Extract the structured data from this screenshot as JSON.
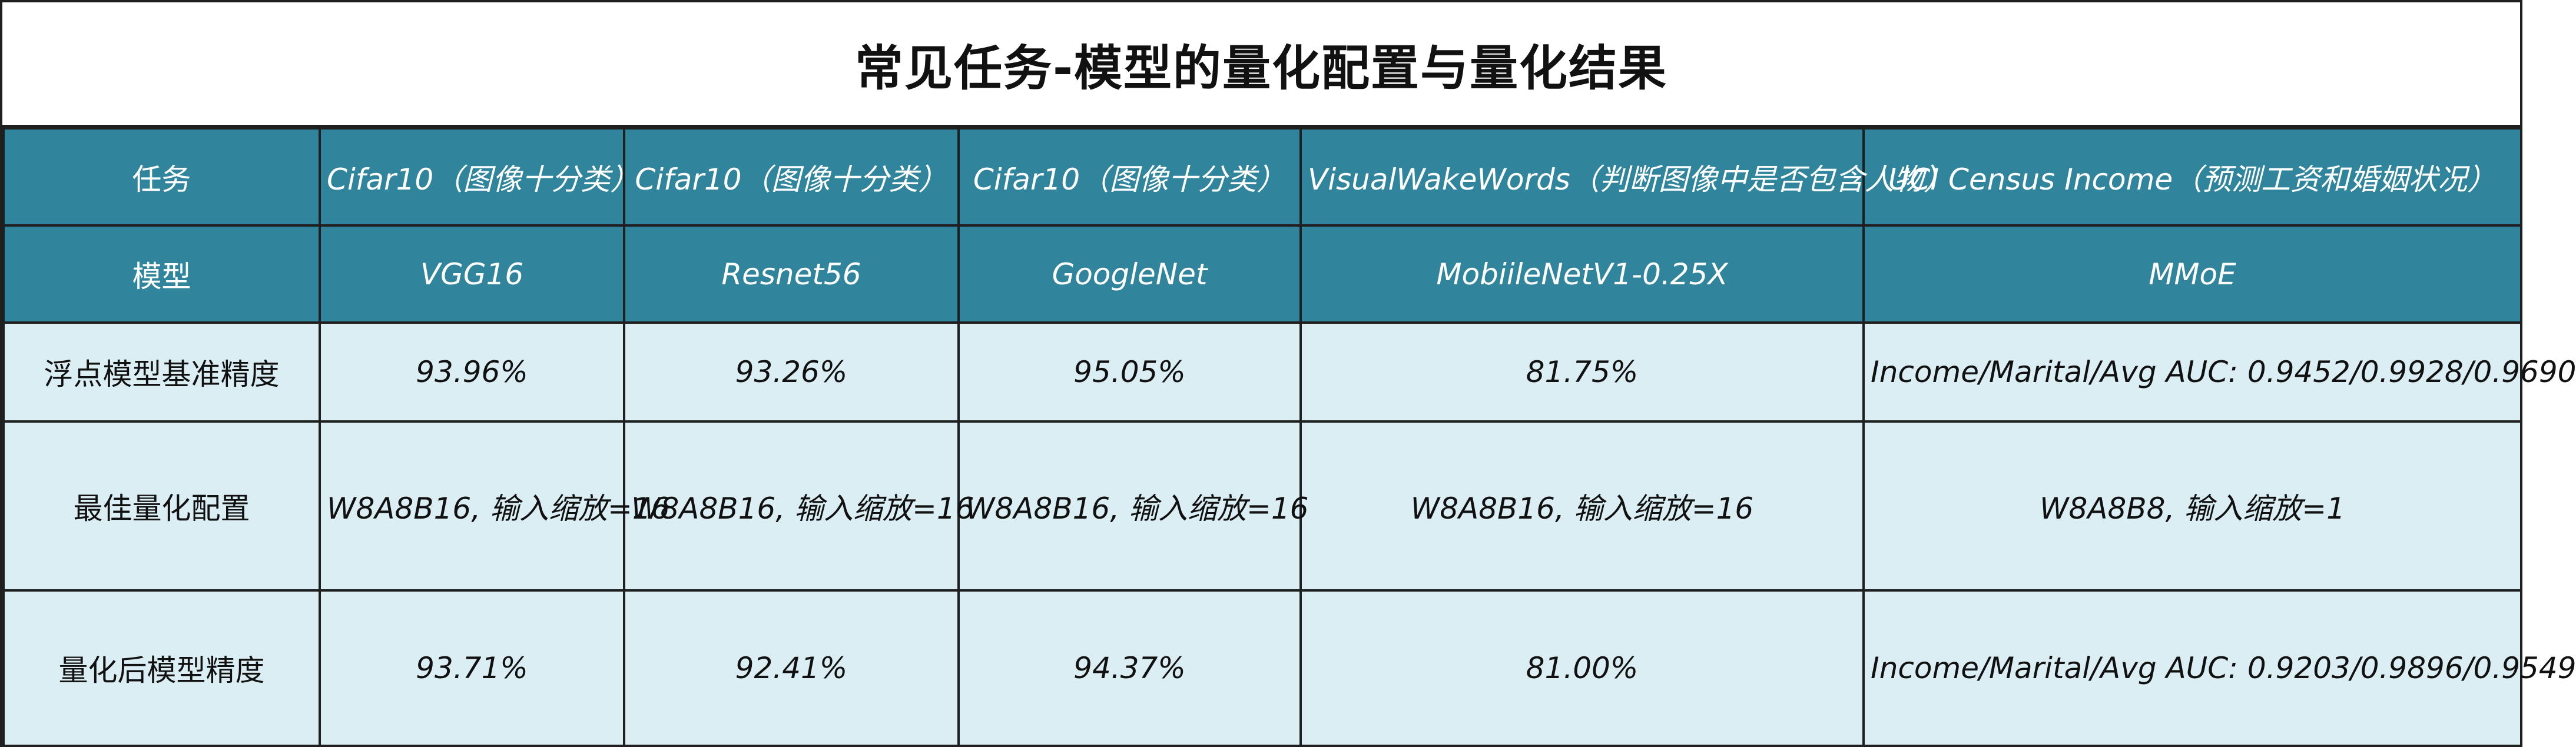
{
  "title": "常见任务-模型的量化配置与量化结果",
  "colors": {
    "header_bg": "#30859c",
    "body_bg": "#dbeef3",
    "border": "#1f1f1f",
    "header_text": "#ffffff",
    "body_text": "#111111"
  },
  "table": {
    "task_row": {
      "label": "任务",
      "cells": [
        "Cifar10（图像十分类）",
        "Cifar10（图像十分类）",
        "Cifar10（图像十分类）",
        "VisualWakeWords（判断图像中是否包含人物）",
        "UCI Census Income（预测工资和婚姻状况）"
      ]
    },
    "model_row": {
      "label": "模型",
      "cells": [
        "VGG16",
        "Resnet56",
        "GoogleNet",
        "MobiileNetV1-0.25X",
        "MMoE"
      ]
    },
    "float_acc_row": {
      "label": "浮点模型基准精度",
      "cells": [
        "93.96%",
        "93.26%",
        "95.05%",
        "81.75%",
        "Income/Marital/Avg AUC: 0.9452/0.9928/0.9690"
      ]
    },
    "best_config_row": {
      "label": "最佳量化配置",
      "cells": [
        "W8A8B16, 输入缩放=16",
        "W8A8B16, 输入缩放=16",
        "W8A8B16, 输入缩放=16",
        "W8A8B16, 输入缩放=16",
        "W8A8B8, 输入缩放=1"
      ]
    },
    "quant_acc_row": {
      "label": "量化后模型精度",
      "cells": [
        "93.71%",
        "92.41%",
        "94.37%",
        "81.00%",
        "Income/Marital/Avg AUC: 0.9203/0.9896/0.9549"
      ]
    }
  }
}
